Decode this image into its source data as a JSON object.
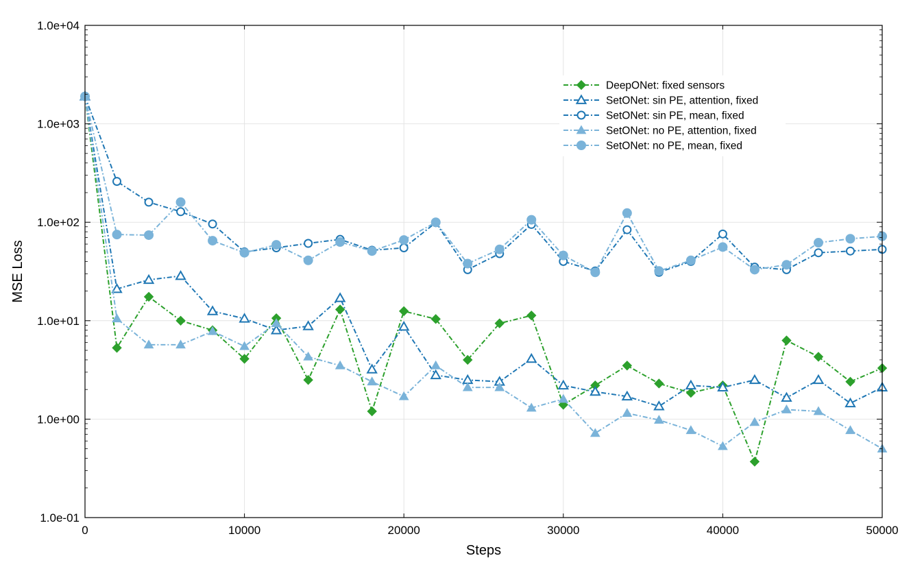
{
  "chart_data": {
    "type": "line",
    "title": "",
    "xlabel": "Steps",
    "ylabel": "MSE Loss",
    "xlim": [
      0,
      50000
    ],
    "ylim": [
      0.1,
      10000
    ],
    "yscale": "log",
    "grid": true,
    "legend_position": "top-right",
    "x_ticks": [
      0,
      10000,
      20000,
      30000,
      40000,
      50000
    ],
    "x_tick_labels": [
      "0",
      "10000",
      "20000",
      "30000",
      "40000",
      "50000"
    ],
    "y_ticks": [
      0.1,
      1,
      10,
      100,
      1000,
      10000
    ],
    "y_tick_labels": [
      "1.0e-01",
      "1.0e+00",
      "1.0e+01",
      "1.0e+02",
      "1.0e+03",
      "1.0e+04"
    ],
    "x": [
      0,
      2000,
      4000,
      6000,
      8000,
      10000,
      12000,
      14000,
      16000,
      18000,
      20000,
      22000,
      24000,
      26000,
      28000,
      30000,
      32000,
      34000,
      36000,
      38000,
      40000,
      42000,
      44000,
      46000,
      48000,
      50000
    ],
    "series": [
      {
        "name": "DeepONet: fixed sensors",
        "color": "#2ca02c",
        "marker": "diamond",
        "dash": "dashdot",
        "values": [
          1900,
          5.3,
          17.5,
          10.0,
          8.0,
          4.1,
          10.6,
          2.5,
          13.0,
          1.2,
          12.5,
          10.4,
          4.0,
          9.4,
          11.3,
          1.4,
          2.2,
          3.5,
          2.3,
          1.85,
          2.2,
          0.37,
          6.3,
          4.3,
          2.4,
          3.3
        ]
      },
      {
        "name": "SetONet: sin PE, attention, fixed",
        "color": "#1f77b4",
        "marker": "triangle-open",
        "dash": "dashdot",
        "values": [
          1900,
          21,
          26,
          28.5,
          12.5,
          10.5,
          8.0,
          8.8,
          17.0,
          3.2,
          8.7,
          2.8,
          2.5,
          2.4,
          4.1,
          2.2,
          1.9,
          1.7,
          1.35,
          2.2,
          2.1,
          2.5,
          1.65,
          2.5,
          1.45,
          2.1
        ]
      },
      {
        "name": "SetONet: sin PE, mean, fixed",
        "color": "#1f77b4",
        "marker": "circle-open",
        "dash": "dashdot",
        "values": [
          1900,
          260,
          160,
          128,
          96,
          50,
          55,
          61,
          67,
          52,
          55,
          99,
          33,
          48,
          95,
          40,
          32,
          84,
          31,
          40,
          76,
          35,
          33,
          49,
          51,
          53
        ]
      },
      {
        "name": "SetONet: no PE, attention, fixed",
        "color": "#7ab3d9",
        "marker": "triangle-filled",
        "dash": "dashdot",
        "values": [
          1900,
          10.5,
          5.7,
          5.7,
          7.8,
          5.5,
          9.4,
          4.3,
          3.5,
          2.4,
          1.7,
          3.5,
          2.1,
          2.1,
          1.3,
          1.6,
          0.72,
          1.15,
          0.98,
          0.77,
          0.53,
          0.93,
          1.25,
          1.2,
          0.77,
          0.5
        ]
      },
      {
        "name": "SetONet: no PE, mean, fixed",
        "color": "#7ab3d9",
        "marker": "circle-filled",
        "dash": "dashdot",
        "values": [
          1900,
          75,
          74,
          160,
          65,
          49,
          59,
          41,
          63,
          51,
          66,
          100,
          38,
          53,
          106,
          46,
          31,
          124,
          32,
          41,
          56,
          33,
          37,
          62,
          68,
          72
        ]
      }
    ]
  }
}
